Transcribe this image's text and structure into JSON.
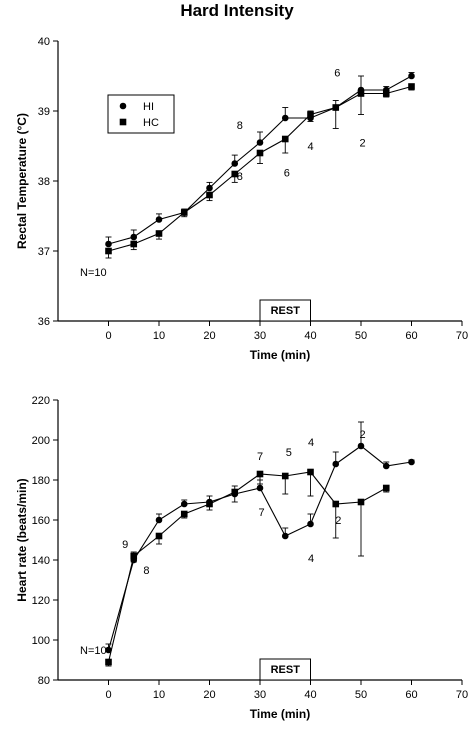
{
  "title": "Hard Intensity",
  "chart_data": [
    {
      "type": "line",
      "xlabel": "Time (min)",
      "ylabel": "Rectal Temperature (°C)",
      "xlim": [
        -10,
        70
      ],
      "ylim": [
        36,
        40
      ],
      "xticks": [
        0,
        10,
        20,
        30,
        40,
        50,
        60,
        70
      ],
      "yticks": [
        36,
        37,
        38,
        39,
        40
      ],
      "legend": {
        "placement": "top-left",
        "boxed": true
      },
      "rest_label": "REST",
      "rest_range": [
        30,
        40
      ],
      "series": [
        {
          "name": "HI",
          "marker": "circle",
          "x": [
            0,
            5,
            10,
            15,
            20,
            25,
            30,
            35,
            40,
            45,
            50,
            55,
            60
          ],
          "y": [
            37.1,
            37.2,
            37.45,
            37.55,
            37.9,
            38.25,
            38.55,
            38.9,
            38.9,
            39.05,
            39.3,
            39.3,
            39.5
          ],
          "err": [
            0.1,
            0.1,
            0.08,
            0.05,
            0.08,
            0.12,
            0.15,
            0.15,
            0.1,
            0.1,
            0.2,
            0.05,
            0.05
          ]
        },
        {
          "name": "HC",
          "marker": "square",
          "x": [
            0,
            5,
            10,
            15,
            20,
            25,
            30,
            35,
            40,
            45,
            50,
            55,
            60
          ],
          "y": [
            37.0,
            37.1,
            37.25,
            37.55,
            37.8,
            38.1,
            38.4,
            38.6,
            38.95,
            39.05,
            39.25,
            39.25,
            39.35
          ],
          "err": [
            0.1,
            0.08,
            0.08,
            0.06,
            0.08,
            0.12,
            0.15,
            0.2,
            0.1,
            0.3,
            0.3,
            0.05,
            0.05
          ]
        }
      ],
      "annotations": [
        {
          "text": "N=10",
          "x": -3,
          "y": 36.7
        },
        {
          "text": "8",
          "x": 26,
          "y": 38.8
        },
        {
          "text": "8",
          "x": 26,
          "y": 38.07
        },
        {
          "text": "6",
          "x": 35.3,
          "y": 38.12
        },
        {
          "text": "4",
          "x": 40,
          "y": 38.5
        },
        {
          "text": "6",
          "x": 45.3,
          "y": 39.55
        },
        {
          "text": "2",
          "x": 50.3,
          "y": 38.55
        }
      ]
    },
    {
      "type": "line",
      "xlabel": "Time (min)",
      "ylabel": "Heart rate (beats/min)",
      "xlim": [
        -10,
        70
      ],
      "ylim": [
        80,
        220
      ],
      "xticks": [
        0,
        10,
        20,
        30,
        40,
        50,
        60,
        70
      ],
      "yticks": [
        80,
        100,
        120,
        140,
        160,
        180,
        200,
        220
      ],
      "rest_label": "REST",
      "rest_range": [
        30,
        40
      ],
      "series": [
        {
          "name": "HI",
          "marker": "circle",
          "x": [
            0,
            5,
            10,
            15,
            20,
            25,
            30,
            35,
            40,
            45,
            50,
            55,
            60
          ],
          "y": [
            95,
            140,
            160,
            168,
            169,
            173,
            176,
            152,
            158,
            188,
            197,
            187,
            189
          ],
          "err": [
            3,
            4,
            3,
            2,
            3,
            4,
            4,
            4,
            5,
            6,
            12,
            2,
            1
          ]
        },
        {
          "name": "HC",
          "marker": "square",
          "x": [
            0,
            5,
            10,
            15,
            20,
            25,
            30,
            35,
            40,
            45,
            50,
            55
          ],
          "y": [
            89,
            142,
            152,
            163,
            168,
            174,
            183,
            182,
            184,
            168,
            169,
            176
          ],
          "err": [
            2,
            3,
            4,
            2,
            3,
            5,
            5,
            9,
            12,
            17,
            27,
            2
          ]
        }
      ],
      "annotations": [
        {
          "text": "N=10",
          "x": -3,
          "y": 95
        },
        {
          "text": "9",
          "x": 3.3,
          "y": 148
        },
        {
          "text": "8",
          "x": 7.5,
          "y": 135
        },
        {
          "text": "7",
          "x": 30,
          "y": 192
        },
        {
          "text": "5",
          "x": 35.7,
          "y": 194
        },
        {
          "text": "4",
          "x": 40.1,
          "y": 199
        },
        {
          "text": "2",
          "x": 50.3,
          "y": 203
        },
        {
          "text": "7",
          "x": 30.3,
          "y": 164
        },
        {
          "text": "4",
          "x": 40.1,
          "y": 141
        },
        {
          "text": "2",
          "x": 45.5,
          "y": 160
        }
      ]
    }
  ]
}
